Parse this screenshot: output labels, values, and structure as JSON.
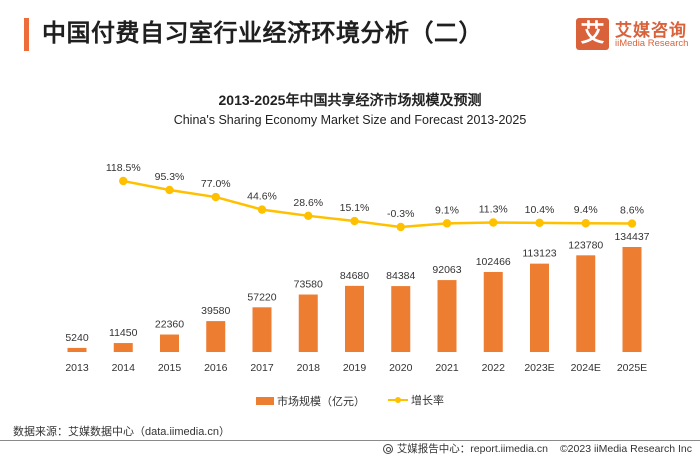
{
  "header": {
    "title": "中国付费自习室行业经济环境分析（二）",
    "accent_color": "#ee6c3a"
  },
  "logo": {
    "icon_glyph": "艾",
    "name_cn": "艾媒咨询",
    "name_en": "iiMedia Research",
    "color": "#d9623b"
  },
  "chart_data": {
    "type": "bar",
    "title": "2013-2025年中国共享经济市场规模及预测",
    "subtitle": "China's Sharing Economy Market Size and Forecast 2013-2025",
    "categories": [
      "2013",
      "2014",
      "2015",
      "2016",
      "2017",
      "2018",
      "2019",
      "2020",
      "2021",
      "2022",
      "2023E",
      "2024E",
      "2025E"
    ],
    "series": [
      {
        "name": "市场规模（亿元）",
        "type": "bar",
        "color": "#ed7d31",
        "values": [
          5240,
          11450,
          22360,
          39580,
          57220,
          73580,
          84680,
          84384,
          92063,
          102466,
          113123,
          123780,
          134437
        ],
        "labels": [
          "5240",
          "11450",
          "22360",
          "39580",
          "57220",
          "73580",
          "84680",
          "84384",
          "92063",
          "102466",
          "113123",
          "123780",
          "134437"
        ]
      },
      {
        "name": "增长率",
        "type": "line",
        "color": "#ffc000",
        "values": [
          null,
          118.5,
          95.3,
          77.0,
          44.6,
          28.6,
          15.1,
          -0.3,
          9.1,
          11.3,
          10.4,
          9.4,
          8.6
        ],
        "labels": [
          null,
          "118.5%",
          "95.3%",
          "77.0%",
          "44.6%",
          "28.6%",
          "15.1%",
          "-0.3%",
          "9.1%",
          "11.3%",
          "10.4%",
          "9.4%",
          "8.6%"
        ]
      }
    ],
    "xlabel": "",
    "ylabel": "",
    "ylim_bar": [
      0,
      134437
    ],
    "ylim_line": [
      -0.3,
      118.5
    ],
    "grid": false,
    "legend_position": "bottom-center"
  },
  "legend": {
    "bar_label": "市场规模（亿元）",
    "line_label": "增长率"
  },
  "source": "数据来源：艾媒数据中心（data.iimedia.cn）",
  "footer": {
    "report_center": "艾媒报告中心：report.iimedia.cn",
    "copyright": "©2023  iiMedia Research  Inc"
  }
}
